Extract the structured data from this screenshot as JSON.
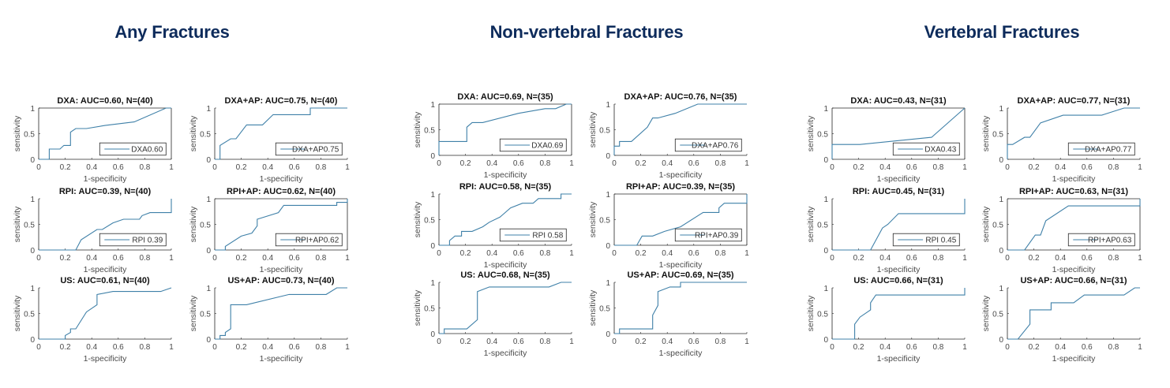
{
  "headings": [
    "Any Fractures",
    "Non-vertebral Fractures",
    "Vertebral Fractures"
  ],
  "colors": {
    "heading": "#0d2b5b",
    "line": "#3f80a8",
    "axis": "#262626"
  },
  "chart_data": [
    {
      "group": "Any Fractures",
      "type": "line",
      "xlabel": "1-specificity",
      "ylabel": "sensitivity",
      "xlim": [
        0,
        1
      ],
      "ylim": [
        0,
        1
      ],
      "xticks": [
        "0",
        "0.2",
        "0.4",
        "0.6",
        "0.8",
        "1"
      ],
      "yticks": [
        "0",
        "0.5",
        "1"
      ],
      "legend_position": "bottom-right",
      "panels": [
        {
          "title": "DXA: AUC=0.60, N=(40)",
          "legend": "DXA0.60",
          "box": true,
          "points": [
            [
              0,
              0
            ],
            [
              0.08,
              0
            ],
            [
              0.08,
              0.2
            ],
            [
              0.16,
              0.2
            ],
            [
              0.19,
              0.27
            ],
            [
              0.24,
              0.27
            ],
            [
              0.24,
              0.53
            ],
            [
              0.28,
              0.6
            ],
            [
              0.36,
              0.6
            ],
            [
              0.5,
              0.66
            ],
            [
              0.72,
              0.73
            ],
            [
              0.96,
              1
            ],
            [
              1,
              1
            ]
          ]
        },
        {
          "title": "DXA+AP: AUC=0.75, N=(40)",
          "legend": "DXA+AP0.75",
          "box": false,
          "points": [
            [
              0,
              0
            ],
            [
              0.04,
              0
            ],
            [
              0.04,
              0.27
            ],
            [
              0.12,
              0.4
            ],
            [
              0.16,
              0.4
            ],
            [
              0.24,
              0.67
            ],
            [
              0.36,
              0.67
            ],
            [
              0.44,
              0.87
            ],
            [
              0.72,
              0.87
            ],
            [
              0.72,
              1
            ],
            [
              1,
              1
            ]
          ]
        },
        {
          "title": "RPI: AUC=0.39, N=(40)",
          "legend": "RPI 0.39",
          "box": false,
          "points": [
            [
              0,
              0
            ],
            [
              0.28,
              0
            ],
            [
              0.32,
              0.2
            ],
            [
              0.44,
              0.4
            ],
            [
              0.48,
              0.4
            ],
            [
              0.56,
              0.53
            ],
            [
              0.64,
              0.6
            ],
            [
              0.76,
              0.6
            ],
            [
              0.78,
              0.67
            ],
            [
              0.84,
              0.73
            ],
            [
              1,
              0.73
            ],
            [
              1,
              1
            ]
          ]
        },
        {
          "title": "RPI+AP: AUC=0.62, N=(40)",
          "legend": "RPI+AP0.62",
          "box": true,
          "points": [
            [
              0,
              0
            ],
            [
              0.08,
              0
            ],
            [
              0.08,
              0.07
            ],
            [
              0.2,
              0.27
            ],
            [
              0.28,
              0.33
            ],
            [
              0.32,
              0.47
            ],
            [
              0.32,
              0.6
            ],
            [
              0.48,
              0.73
            ],
            [
              0.52,
              0.87
            ],
            [
              0.92,
              0.87
            ],
            [
              0.92,
              0.93
            ],
            [
              1,
              0.93
            ],
            [
              1,
              1
            ]
          ]
        },
        {
          "title": "US: AUC=0.61, N=(40)",
          "legend": "",
          "box": false,
          "points": [
            [
              0,
              0
            ],
            [
              0.2,
              0
            ],
            [
              0.2,
              0.07
            ],
            [
              0.24,
              0.13
            ],
            [
              0.24,
              0.2
            ],
            [
              0.28,
              0.2
            ],
            [
              0.36,
              0.53
            ],
            [
              0.44,
              0.67
            ],
            [
              0.44,
              0.87
            ],
            [
              0.56,
              0.93
            ],
            [
              0.92,
              0.93
            ],
            [
              1,
              1
            ]
          ]
        },
        {
          "title": "US+AP: AUC=0.73, N=(40)",
          "legend": "",
          "box": false,
          "points": [
            [
              0,
              0
            ],
            [
              0.04,
              0
            ],
            [
              0.04,
              0.07
            ],
            [
              0.08,
              0.07
            ],
            [
              0.08,
              0.13
            ],
            [
              0.12,
              0.2
            ],
            [
              0.12,
              0.67
            ],
            [
              0.24,
              0.67
            ],
            [
              0.56,
              0.87
            ],
            [
              0.84,
              0.87
            ],
            [
              0.92,
              1
            ],
            [
              1,
              1
            ]
          ]
        }
      ]
    },
    {
      "group": "Non-vertebral Fractures",
      "type": "line",
      "xlabel": "1-specificity",
      "ylabel": "sensitivity",
      "xlim": [
        0,
        1
      ],
      "ylim": [
        0,
        1
      ],
      "xticks": [
        "0",
        "0.2",
        "0.4",
        "0.6",
        "0.8",
        "1"
      ],
      "yticks": [
        "0",
        "0.5",
        "1"
      ],
      "legend_position": "bottom-right",
      "panels": [
        {
          "title": "DXA: AUC=0.69, N=(35)",
          "legend": "DXA0.69",
          "box": true,
          "points": [
            [
              0,
              0
            ],
            [
              0,
              0.27
            ],
            [
              0.21,
              0.27
            ],
            [
              0.21,
              0.55
            ],
            [
              0.25,
              0.64
            ],
            [
              0.33,
              0.64
            ],
            [
              0.6,
              0.82
            ],
            [
              0.8,
              0.91
            ],
            [
              0.88,
              0.91
            ],
            [
              0.96,
              1
            ],
            [
              1,
              1
            ]
          ]
        },
        {
          "title": "DXA+AP: AUC=0.76, N=(35)",
          "legend": "DXA+AP0.76",
          "box": false,
          "points": [
            [
              0,
              0
            ],
            [
              0,
              0.18
            ],
            [
              0.04,
              0.18
            ],
            [
              0.04,
              0.27
            ],
            [
              0.13,
              0.27
            ],
            [
              0.25,
              0.55
            ],
            [
              0.29,
              0.73
            ],
            [
              0.33,
              0.73
            ],
            [
              0.46,
              0.82
            ],
            [
              0.63,
              1
            ],
            [
              1,
              1
            ]
          ]
        },
        {
          "title": "RPI: AUC=0.58, N=(35)",
          "legend": "RPI 0.58",
          "box": false,
          "points": [
            [
              0,
              0
            ],
            [
              0.08,
              0
            ],
            [
              0.08,
              0.09
            ],
            [
              0.12,
              0.18
            ],
            [
              0.17,
              0.18
            ],
            [
              0.17,
              0.27
            ],
            [
              0.25,
              0.27
            ],
            [
              0.33,
              0.36
            ],
            [
              0.38,
              0.45
            ],
            [
              0.46,
              0.55
            ],
            [
              0.54,
              0.73
            ],
            [
              0.63,
              0.82
            ],
            [
              0.71,
              0.82
            ],
            [
              0.75,
              0.91
            ],
            [
              0.92,
              0.91
            ],
            [
              0.92,
              1
            ],
            [
              1,
              1
            ]
          ]
        },
        {
          "title": "RPI+AP: AUC=0.39, N=(35)",
          "legend": "RPI+AP0.39",
          "box": true,
          "points": [
            [
              0,
              0
            ],
            [
              0.17,
              0
            ],
            [
              0.21,
              0.18
            ],
            [
              0.29,
              0.18
            ],
            [
              0.38,
              0.27
            ],
            [
              0.5,
              0.36
            ],
            [
              0.67,
              0.64
            ],
            [
              0.79,
              0.64
            ],
            [
              0.79,
              0.73
            ],
            [
              0.83,
              0.82
            ],
            [
              1,
              0.82
            ],
            [
              1,
              1
            ]
          ]
        },
        {
          "title": "US: AUC=0.68, N=(35)",
          "legend": "",
          "box": false,
          "points": [
            [
              0,
              0
            ],
            [
              0.04,
              0
            ],
            [
              0.04,
              0.09
            ],
            [
              0.21,
              0.09
            ],
            [
              0.29,
              0.27
            ],
            [
              0.29,
              0.82
            ],
            [
              0.38,
              0.91
            ],
            [
              0.83,
              0.91
            ],
            [
              0.92,
              1
            ],
            [
              1,
              1
            ]
          ]
        },
        {
          "title": "US+AP: AUC=0.69, N=(35)",
          "legend": "",
          "box": false,
          "points": [
            [
              0,
              0
            ],
            [
              0.04,
              0
            ],
            [
              0.04,
              0.09
            ],
            [
              0.29,
              0.09
            ],
            [
              0.29,
              0.36
            ],
            [
              0.33,
              0.55
            ],
            [
              0.33,
              0.82
            ],
            [
              0.42,
              0.91
            ],
            [
              0.5,
              0.91
            ],
            [
              0.5,
              1
            ],
            [
              1,
              1
            ]
          ]
        }
      ]
    },
    {
      "group": "Vertebral Fractures",
      "type": "line",
      "xlabel": "1-specificity",
      "ylabel": "sensitivity",
      "xlim": [
        0,
        1
      ],
      "ylim": [
        0,
        1
      ],
      "xticks": [
        "0",
        "0.2",
        "0.4",
        "0.6",
        "0.8",
        "1"
      ],
      "yticks": [
        "0",
        "0.5",
        "1"
      ],
      "legend_position": "bottom-right",
      "panels": [
        {
          "title": "DXA: AUC=0.43, N=(31)",
          "legend": "DXA0.43",
          "box": true,
          "points": [
            [
              0,
              0
            ],
            [
              0,
              0.29
            ],
            [
              0.21,
              0.29
            ],
            [
              0.75,
              0.43
            ],
            [
              1,
              1
            ]
          ]
        },
        {
          "title": "DXA+AP: AUC=0.77, N=(31)",
          "legend": "DXA+AP0.77",
          "box": false,
          "points": [
            [
              0,
              0
            ],
            [
              0,
              0.29
            ],
            [
              0.04,
              0.29
            ],
            [
              0.13,
              0.43
            ],
            [
              0.17,
              0.43
            ],
            [
              0.25,
              0.71
            ],
            [
              0.42,
              0.86
            ],
            [
              0.71,
              0.86
            ],
            [
              0.88,
              1
            ],
            [
              1,
              1
            ]
          ]
        },
        {
          "title": "RPI: AUC=0.45, N=(31)",
          "legend": "RPI 0.45",
          "box": false,
          "points": [
            [
              0,
              0
            ],
            [
              0.29,
              0
            ],
            [
              0.38,
              0.43
            ],
            [
              0.42,
              0.5
            ],
            [
              0.5,
              0.71
            ],
            [
              1,
              0.71
            ],
            [
              1,
              1
            ]
          ]
        },
        {
          "title": "RPI+AP: AUC=0.63, N=(31)",
          "legend": "RPI+AP0.63",
          "box": true,
          "points": [
            [
              0,
              0
            ],
            [
              0.13,
              0
            ],
            [
              0.21,
              0.29
            ],
            [
              0.25,
              0.29
            ],
            [
              0.29,
              0.57
            ],
            [
              0.46,
              0.86
            ],
            [
              1,
              0.86
            ],
            [
              1,
              1
            ]
          ]
        },
        {
          "title": "US: AUC=0.66, N=(31)",
          "legend": "",
          "box": false,
          "points": [
            [
              0,
              0
            ],
            [
              0.17,
              0
            ],
            [
              0.17,
              0.29
            ],
            [
              0.21,
              0.43
            ],
            [
              0.29,
              0.57
            ],
            [
              0.29,
              0.71
            ],
            [
              0.33,
              0.86
            ],
            [
              1,
              0.86
            ],
            [
              1,
              1
            ]
          ]
        },
        {
          "title": "US+AP: AUC=0.66, N=(31)",
          "legend": "",
          "box": false,
          "points": [
            [
              0,
              0
            ],
            [
              0.08,
              0
            ],
            [
              0.17,
              0.29
            ],
            [
              0.17,
              0.57
            ],
            [
              0.33,
              0.57
            ],
            [
              0.33,
              0.71
            ],
            [
              0.5,
              0.71
            ],
            [
              0.58,
              0.86
            ],
            [
              0.88,
              0.86
            ],
            [
              0.96,
              1
            ],
            [
              1,
              1
            ]
          ]
        }
      ]
    }
  ]
}
